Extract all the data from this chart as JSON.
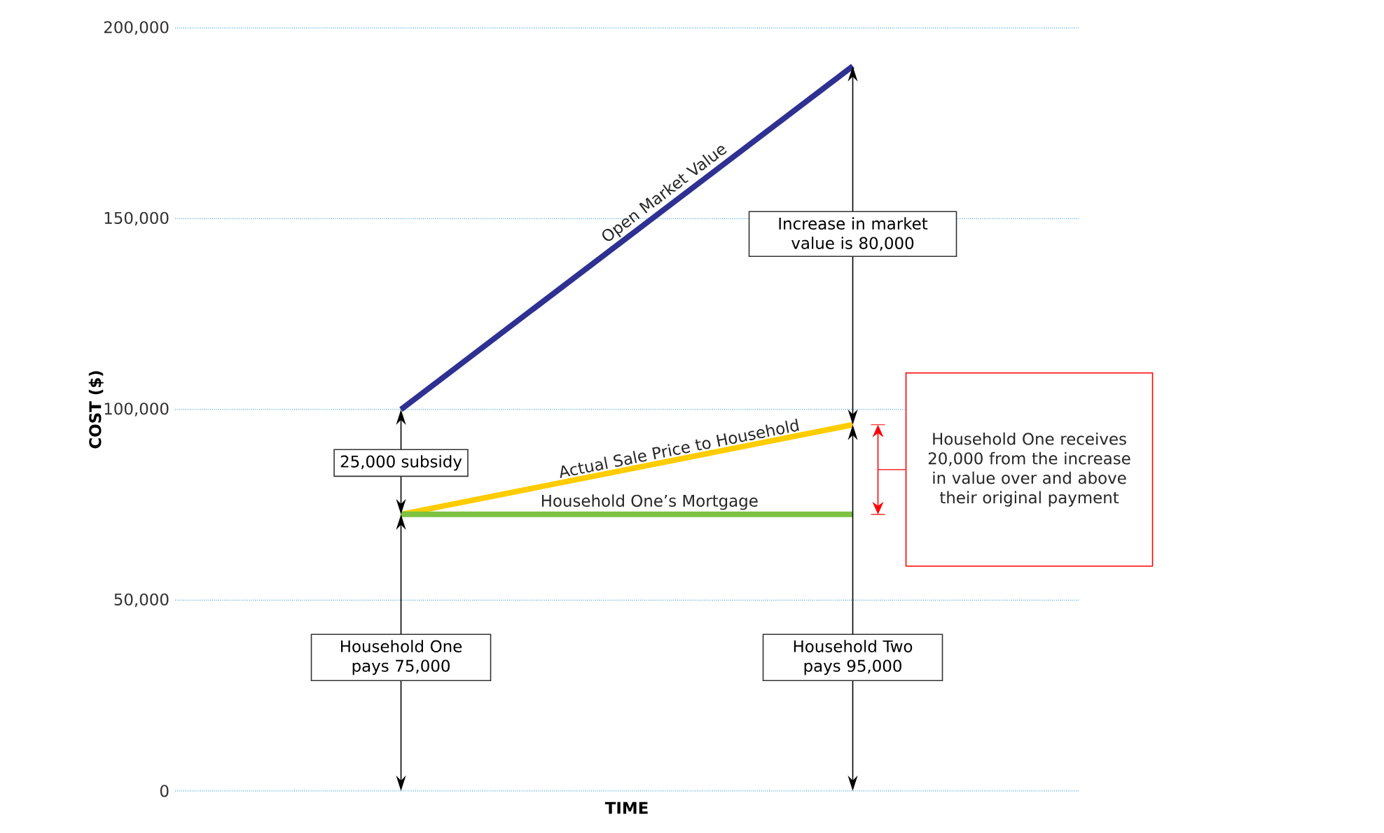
{
  "chart_data": {
    "type": "line",
    "xlabel": "TIME",
    "ylabel": "COST ($)",
    "categories": [
      null,
      null
    ],
    "series": [
      {
        "name": "Open Market Value",
        "color": "#2e3192",
        "values": [
          100000,
          190000
        ]
      },
      {
        "name": "Actual Sale Price to Household",
        "color": "#ffcc00",
        "values": [
          72500,
          96000
        ]
      },
      {
        "name": "Household One’s Mortgage",
        "color": "#7dc242",
        "values": [
          72500,
          72500
        ]
      }
    ],
    "ylim": [
      0,
      200000
    ],
    "yticks": [
      {
        "value": 0,
        "label": "0"
      },
      {
        "value": 50000,
        "label": "50,000"
      },
      {
        "value": 100000,
        "label": "100,000"
      },
      {
        "value": 150000,
        "label": "150,000"
      },
      {
        "value": 200000,
        "label": "200,000"
      }
    ],
    "grid": "y",
    "tick_labels": "y",
    "annotations": [
      "25,000 subsidy",
      "Household One pays 75,000",
      "Increase in market value is 80,000",
      "Household Two pays 95,000",
      "Household One receives 20,000 from the increase in value over and above their original payment"
    ]
  }
}
